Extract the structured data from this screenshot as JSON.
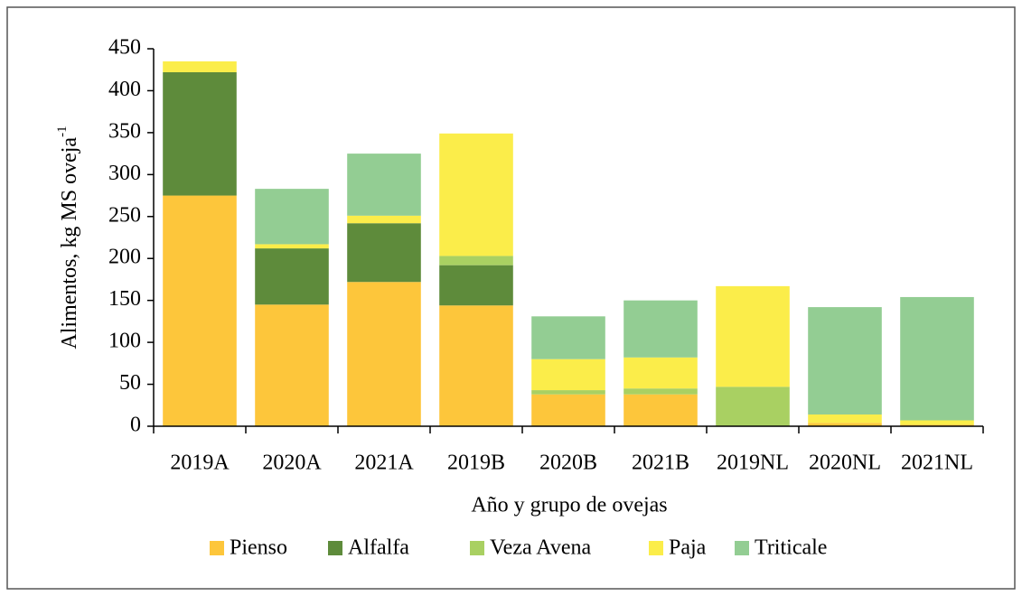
{
  "chart_data": {
    "type": "stacked_bar",
    "y_label": "Alimentos, kg MS oveja",
    "y_label_sup": "-1",
    "x_label": "Año y grupo de ovejas",
    "categories": [
      "2019A",
      "2020A",
      "2021A",
      "2019B",
      "2020B",
      "2021B",
      "2019NL",
      "2020NL",
      "2021NL"
    ],
    "series": [
      {
        "name": "Pienso",
        "color": "#fdc63b",
        "values": [
          275,
          145,
          172,
          144,
          38,
          38,
          0,
          4,
          2
        ]
      },
      {
        "name": "Alfalfa",
        "color": "#5e8b3b",
        "values": [
          147,
          67,
          70,
          48,
          0,
          0,
          0,
          0,
          0
        ]
      },
      {
        "name": "Veza Avena",
        "color": "#a9d062",
        "values": [
          0,
          0,
          0,
          11,
          5,
          7,
          47,
          0,
          0
        ]
      },
      {
        "name": "Paja",
        "color": "#fbed4a",
        "values": [
          13,
          5,
          9,
          146,
          37,
          37,
          120,
          10,
          5
        ]
      },
      {
        "name": "Triticale",
        "color": "#93cd93",
        "values": [
          0,
          66,
          74,
          0,
          51,
          68,
          0,
          128,
          147
        ]
      }
    ],
    "ylim": [
      0,
      450
    ],
    "yticks": [
      0,
      50,
      100,
      150,
      200,
      250,
      300,
      350,
      400,
      450
    ],
    "legend": "bottom"
  }
}
